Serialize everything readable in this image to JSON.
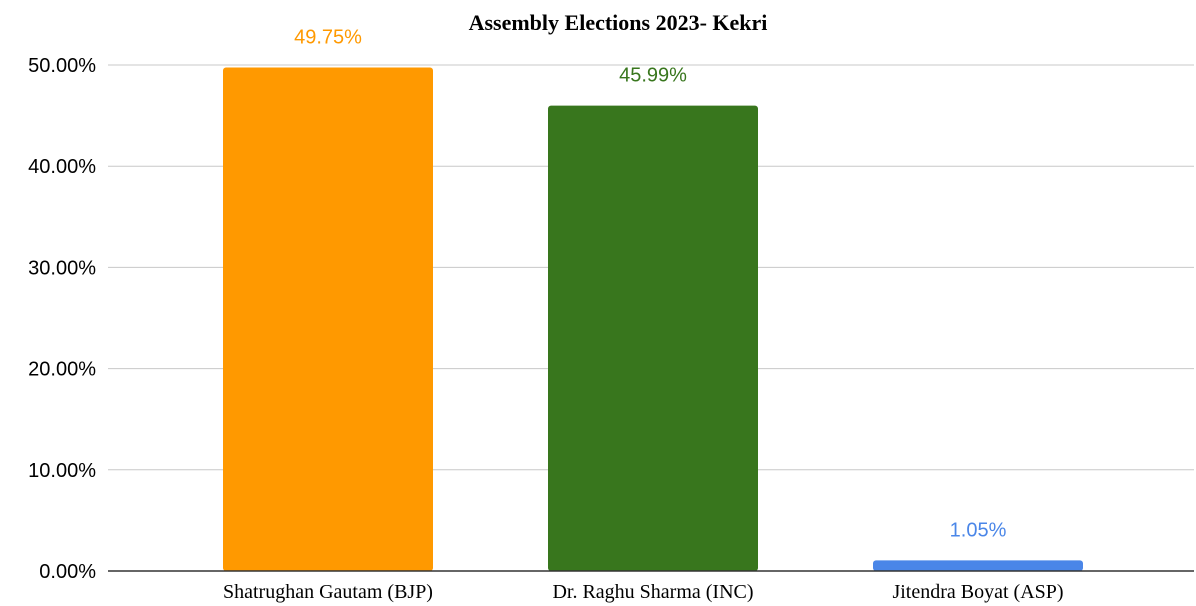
{
  "chart_data": {
    "type": "bar",
    "title": "Assembly Elections 2023- Kekri",
    "xlabel": "",
    "ylabel": "",
    "categories": [
      "Shatrughan Gautam (BJP)",
      "Dr. Raghu Sharma (INC)",
      "Jitendra Boyat (ASP)"
    ],
    "values": [
      49.75,
      45.99,
      1.05
    ],
    "data_labels": [
      "49.75%",
      "45.99%",
      "1.05%"
    ],
    "colors": [
      "#ff9900",
      "#38761d",
      "#4a86e8"
    ],
    "ylim": [
      0,
      50
    ],
    "yticks": [
      0,
      10,
      20,
      30,
      40,
      50
    ],
    "ytick_labels": [
      "0.00%",
      "10.00%",
      "20.00%",
      "30.00%",
      "40.00%",
      "50.00%"
    ],
    "grid": true,
    "legend": "none"
  }
}
